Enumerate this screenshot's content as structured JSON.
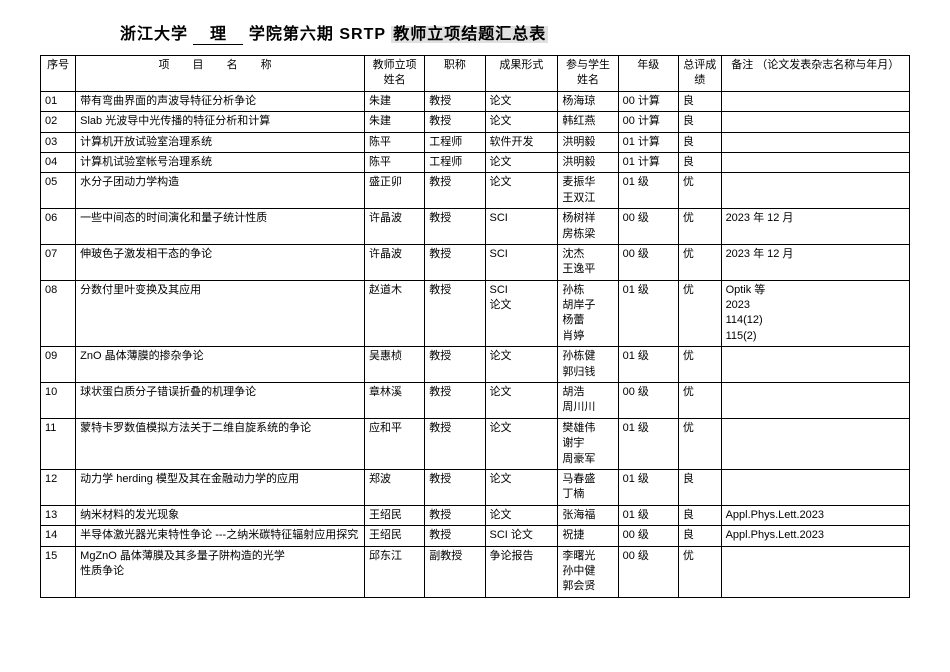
{
  "title": {
    "prefix": "浙江大学",
    "dept": "理",
    "mid": "学院第六期 SRTP",
    "highlighted": "教师立项结题汇总表"
  },
  "headers": {
    "num": "序号",
    "project": "项 目 名 称",
    "teacher": "教师立项姓名",
    "title2": "职称",
    "form": "成果形式",
    "student": "参与学生姓名",
    "grade": "年级",
    "eval": "总评成绩",
    "note": "备注\n（论文发表杂志名称与年月）"
  },
  "rows": [
    {
      "num": "01",
      "project": "带有弯曲界面的声波导特征分析争论",
      "teacher": "朱建",
      "title2": "教授",
      "form": "论文",
      "student": "杨海琼",
      "grade": "00 计算",
      "eval": "良",
      "note": ""
    },
    {
      "num": "02",
      "project": "Slab 光波导中光传播的特征分析和计算",
      "teacher": "朱建",
      "title2": "教授",
      "form": "论文",
      "student": "韩红燕",
      "grade": "00 计算",
      "eval": "良",
      "note": ""
    },
    {
      "num": "03",
      "project": "计算机开放试验室治理系统",
      "teacher": "陈平",
      "title2": "工程师",
      "form": "软件开发",
      "student": "洪明毅",
      "grade": "01 计算",
      "eval": "良",
      "note": ""
    },
    {
      "num": "04",
      "project": "计算机试验室帐号治理系统",
      "teacher": "陈平",
      "title2": "工程师",
      "form": "论文",
      "student": "洪明毅",
      "grade": "01 计算",
      "eval": "良",
      "note": ""
    },
    {
      "num": "05",
      "project": "水分子团动力学构造",
      "teacher": "盛正卯",
      "title2": "教授",
      "form": "论文",
      "student": "麦振华\n王双江",
      "grade": "01 级",
      "eval": "优",
      "note": ""
    },
    {
      "num": "06",
      "project": "一些中间态的时间演化和量子统计性质",
      "teacher": "许晶波",
      "title2": "教授",
      "form": "SCI",
      "student": "杨树祥\n房栋梁",
      "grade": "00 级",
      "eval": "优",
      "note": "2023 年 12 月"
    },
    {
      "num": "07",
      "project": "伸玻色子激发相干态的争论",
      "teacher": "许晶波",
      "title2": "教授",
      "form": "SCI",
      "student": "沈杰\n王逸平",
      "grade": "00 级",
      "eval": "优",
      "note": "2023 年 12 月"
    },
    {
      "num": "08",
      "project": "分数付里叶变换及其应用",
      "teacher": "赵道木",
      "title2": "教授",
      "form": "SCI\n论文",
      "student": "孙栋\n胡岸子\n杨蕾\n肖婷",
      "grade": "01 级",
      "eval": "优",
      "note": "Optik 等\n2023\n114(12)\n115(2)"
    },
    {
      "num": "09",
      "project": "ZnO 晶体薄膜的掺杂争论",
      "teacher": "吴惠桢",
      "title2": "教授",
      "form": "论文",
      "student": "孙栋健\n郭归钱",
      "grade": "01 级",
      "eval": "优",
      "note": ""
    },
    {
      "num": "10",
      "project": "球状蛋白质分子错误折叠的机理争论",
      "teacher": "章林溪",
      "title2": "教授",
      "form": "论文",
      "student": "胡浩\n周川川",
      "grade": "00 级",
      "eval": "优",
      "note": ""
    },
    {
      "num": "11",
      "project": "蒙特卡罗数值模拟方法关于二维自旋系统的争论",
      "teacher": "应和平",
      "title2": "教授",
      "form": "论文",
      "student": "樊雄伟\n谢宇\n周豪军",
      "grade": "01 级",
      "eval": "优",
      "note": ""
    },
    {
      "num": "12",
      "project": "动力学 herding 模型及其在金融动力学的应用",
      "teacher": "郑波",
      "title2": "教授",
      "form": "论文",
      "student": "马春盛\n丁楠",
      "grade": "01 级",
      "eval": "良",
      "note": ""
    },
    {
      "num": "13",
      "project": "纳米材料的发光现象",
      "teacher": "王绍民",
      "title2": "教授",
      "form": "论文",
      "student": "张海福",
      "grade": "01 级",
      "eval": "良",
      "note": "Appl.Phys.Lett.2023"
    },
    {
      "num": "14",
      "project": "半导体激光器光束特性争论 ---之纳米碳特征辐射应用探究",
      "teacher": "王绍民",
      "title2": "教授",
      "form": "SCI 论文",
      "student": "祝捷",
      "grade": "00 级",
      "eval": "良",
      "note": "Appl.Phys.Lett.2023"
    },
    {
      "num": "15",
      "project": "MgZnO 晶体薄膜及其多量子阱构造的光学\n性质争论",
      "teacher": "邱东江",
      "title2": "副教授",
      "form": "争论报告",
      "student": "李曙光\n孙中健\n郭会贤",
      "grade": "00 级",
      "eval": "优",
      "note": ""
    }
  ]
}
